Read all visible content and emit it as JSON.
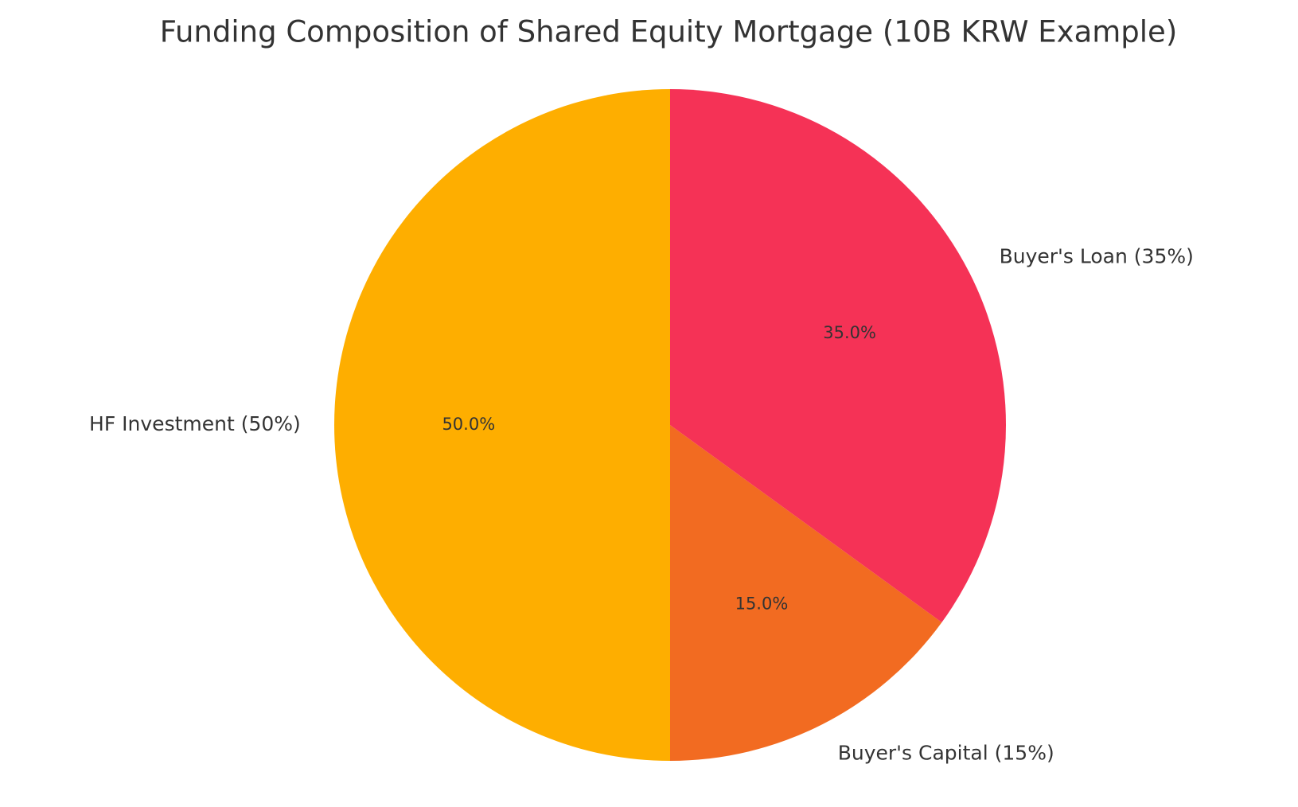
{
  "chart_data": {
    "type": "pie",
    "title": "Funding Composition of Shared Equity Mortgage (10B KRW Example)",
    "categories": [
      "HF Investment (50%)",
      "Buyer's Capital (15%)",
      "Buyer's Loan (35%)"
    ],
    "values": [
      50,
      15,
      35
    ],
    "value_labels": [
      "50.0%",
      "15.0%",
      "35.0%"
    ],
    "colors": [
      "#feae00",
      "#f26b21",
      "#f53256"
    ]
  }
}
